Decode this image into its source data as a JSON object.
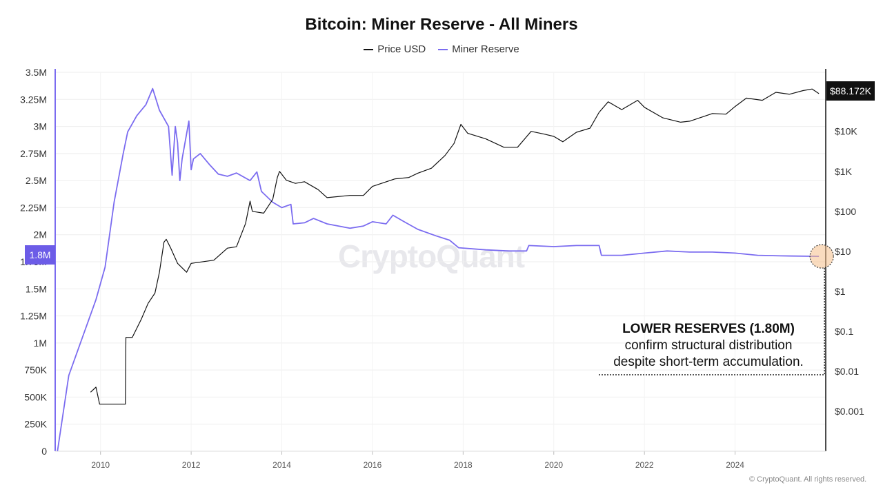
{
  "chart_data": {
    "type": "line",
    "title": "Bitcoin: Miner Reserve - All Miners",
    "legend": {
      "placement": "top-center",
      "entries": [
        "Price USD",
        "Miner Reserve"
      ]
    },
    "grid": true,
    "colors": {
      "price": "#111111",
      "reserve": "#7b6cf0",
      "highlight": "#f5c08a"
    },
    "x_axis": {
      "range": [
        2009.0,
        2026.0
      ],
      "ticks": [
        "2010",
        "2012",
        "2014",
        "2016",
        "2018",
        "2020",
        "2022",
        "2024"
      ]
    },
    "y_left": {
      "range": [
        0,
        3500000
      ],
      "ticks": [
        "0",
        "250K",
        "500K",
        "750K",
        "1M",
        "1.25M",
        "1.5M",
        "1.75M",
        "2M",
        "2.25M",
        "2.5M",
        "2.75M",
        "3M",
        "3.25M",
        "3.5M"
      ]
    },
    "y_right": {
      "scale": "log",
      "range": [
        0.0001,
        300000
      ],
      "ticks": [
        "$0.001",
        "$0.01",
        "$0.1",
        "$1",
        "$10",
        "$100",
        "$1K",
        "$10K"
      ]
    },
    "series": [
      {
        "name": "Miner Reserve",
        "axis": "left",
        "points": [
          [
            2009.05,
            0
          ],
          [
            2009.3,
            700000
          ],
          [
            2009.6,
            1050000
          ],
          [
            2009.9,
            1400000
          ],
          [
            2010.1,
            1700000
          ],
          [
            2010.3,
            2300000
          ],
          [
            2010.5,
            2750000
          ],
          [
            2010.6,
            2950000
          ],
          [
            2010.8,
            3100000
          ],
          [
            2011.0,
            3200000
          ],
          [
            2011.15,
            3350000
          ],
          [
            2011.3,
            3150000
          ],
          [
            2011.5,
            3000000
          ],
          [
            2011.58,
            2550000
          ],
          [
            2011.65,
            3000000
          ],
          [
            2011.7,
            2850000
          ],
          [
            2011.75,
            2500000
          ],
          [
            2011.8,
            2700000
          ],
          [
            2011.95,
            3050000
          ],
          [
            2012.0,
            2600000
          ],
          [
            2012.05,
            2700000
          ],
          [
            2012.2,
            2750000
          ],
          [
            2012.4,
            2650000
          ],
          [
            2012.6,
            2560000
          ],
          [
            2012.8,
            2540000
          ],
          [
            2013.0,
            2570000
          ],
          [
            2013.3,
            2500000
          ],
          [
            2013.45,
            2580000
          ],
          [
            2013.55,
            2400000
          ],
          [
            2013.8,
            2300000
          ],
          [
            2014.0,
            2250000
          ],
          [
            2014.2,
            2280000
          ],
          [
            2014.25,
            2100000
          ],
          [
            2014.5,
            2110000
          ],
          [
            2014.7,
            2150000
          ],
          [
            2015.0,
            2100000
          ],
          [
            2015.5,
            2060000
          ],
          [
            2015.8,
            2080000
          ],
          [
            2016.0,
            2120000
          ],
          [
            2016.3,
            2100000
          ],
          [
            2016.45,
            2180000
          ],
          [
            2016.7,
            2120000
          ],
          [
            2017.0,
            2050000
          ],
          [
            2017.4,
            1990000
          ],
          [
            2017.7,
            1950000
          ],
          [
            2017.9,
            1880000
          ],
          [
            2018.5,
            1860000
          ],
          [
            2019.0,
            1850000
          ],
          [
            2019.4,
            1850000
          ],
          [
            2019.45,
            1900000
          ],
          [
            2020.0,
            1890000
          ],
          [
            2020.5,
            1900000
          ],
          [
            2021.0,
            1900000
          ],
          [
            2021.05,
            1810000
          ],
          [
            2021.5,
            1810000
          ],
          [
            2022.0,
            1830000
          ],
          [
            2022.5,
            1850000
          ],
          [
            2023.0,
            1840000
          ],
          [
            2023.5,
            1840000
          ],
          [
            2024.0,
            1830000
          ],
          [
            2024.5,
            1810000
          ],
          [
            2025.0,
            1805000
          ],
          [
            2025.85,
            1800000
          ]
        ]
      },
      {
        "name": "Price USD",
        "axis": "right",
        "points": [
          [
            2009.78,
            0.003
          ],
          [
            2009.9,
            0.004
          ],
          [
            2009.98,
            0.0015
          ],
          [
            2010.05,
            0.0015
          ],
          [
            2010.55,
            0.0015
          ],
          [
            2010.56,
            0.07
          ],
          [
            2010.7,
            0.07
          ],
          [
            2010.9,
            0.2
          ],
          [
            2011.05,
            0.5
          ],
          [
            2011.2,
            0.9
          ],
          [
            2011.3,
            3
          ],
          [
            2011.4,
            17
          ],
          [
            2011.45,
            20
          ],
          [
            2011.55,
            12
          ],
          [
            2011.7,
            5
          ],
          [
            2011.9,
            3
          ],
          [
            2012.0,
            5
          ],
          [
            2012.5,
            6
          ],
          [
            2012.8,
            12
          ],
          [
            2013.0,
            13
          ],
          [
            2013.2,
            50
          ],
          [
            2013.3,
            180
          ],
          [
            2013.35,
            100
          ],
          [
            2013.6,
            90
          ],
          [
            2013.8,
            200
          ],
          [
            2013.9,
            700
          ],
          [
            2013.95,
            1000
          ],
          [
            2014.1,
            600
          ],
          [
            2014.3,
            500
          ],
          [
            2014.5,
            550
          ],
          [
            2014.8,
            350
          ],
          [
            2015.0,
            220
          ],
          [
            2015.5,
            250
          ],
          [
            2015.8,
            250
          ],
          [
            2016.0,
            420
          ],
          [
            2016.5,
            650
          ],
          [
            2016.8,
            700
          ],
          [
            2017.0,
            900
          ],
          [
            2017.3,
            1200
          ],
          [
            2017.6,
            2500
          ],
          [
            2017.8,
            5000
          ],
          [
            2017.95,
            15000
          ],
          [
            2018.1,
            9000
          ],
          [
            2018.5,
            6500
          ],
          [
            2018.9,
            4000
          ],
          [
            2019.2,
            4000
          ],
          [
            2019.5,
            10000
          ],
          [
            2019.8,
            8500
          ],
          [
            2020.0,
            7500
          ],
          [
            2020.2,
            5500
          ],
          [
            2020.5,
            9500
          ],
          [
            2020.8,
            12000
          ],
          [
            2021.0,
            30000
          ],
          [
            2021.2,
            55000
          ],
          [
            2021.5,
            35000
          ],
          [
            2021.85,
            60000
          ],
          [
            2022.0,
            40000
          ],
          [
            2022.4,
            22000
          ],
          [
            2022.8,
            17000
          ],
          [
            2023.0,
            18000
          ],
          [
            2023.5,
            28000
          ],
          [
            2023.8,
            27000
          ],
          [
            2024.0,
            42000
          ],
          [
            2024.25,
            68000
          ],
          [
            2024.6,
            60000
          ],
          [
            2024.9,
            95000
          ],
          [
            2025.2,
            85000
          ],
          [
            2025.5,
            105000
          ],
          [
            2025.7,
            115000
          ],
          [
            2025.85,
            88172
          ]
        ]
      }
    ],
    "current_values": {
      "reserve": "1.8M",
      "price": "$88.172K"
    },
    "annotation": {
      "heading": "LOWER RESERVES (1.80M)",
      "line1": "confirm structural distribution",
      "line2": "despite short-term accumulation."
    }
  },
  "watermark": "CryptoQuant",
  "copyright": "© CryptoQuant. All rights reserved."
}
